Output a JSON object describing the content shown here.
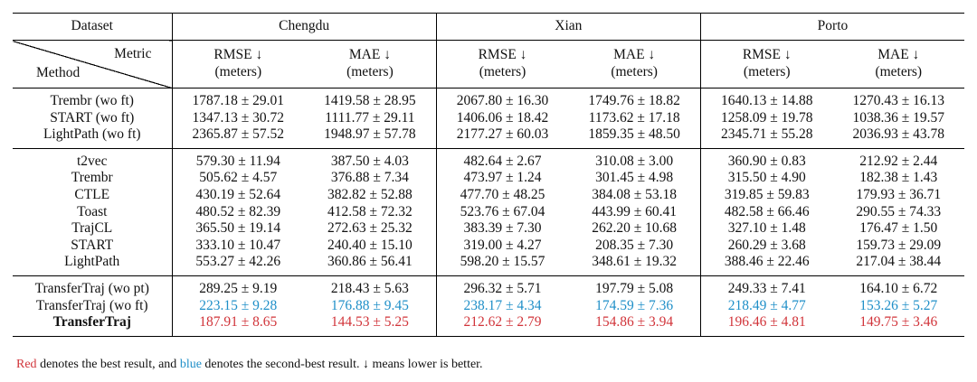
{
  "header": {
    "dataset_label": "Dataset",
    "metric_label": "Metric",
    "method_label": "Method",
    "cities": [
      "Chengdu",
      "Xian",
      "Porto"
    ],
    "metrics": [
      {
        "name": "RMSE ↓",
        "unit": "(meters)"
      },
      {
        "name": "MAE ↓",
        "unit": "(meters)"
      },
      {
        "name": "RMSE ↓",
        "unit": "(meters)"
      },
      {
        "name": "MAE ↓",
        "unit": "(meters)"
      },
      {
        "name": "RMSE ↓",
        "unit": "(meters)"
      },
      {
        "name": "MAE ↓",
        "unit": "(meters)"
      }
    ]
  },
  "groups": [
    {
      "rows": [
        {
          "method": "Trembr (wo ft)",
          "cells": [
            {
              "v": "1787.18 ± 29.01"
            },
            {
              "v": "1419.58 ± 28.95"
            },
            {
              "v": "2067.80 ± 16.30"
            },
            {
              "v": "1749.76 ± 18.82"
            },
            {
              "v": "1640.13 ± 14.88"
            },
            {
              "v": "1270.43 ± 16.13"
            }
          ]
        },
        {
          "method": "START (wo ft)",
          "cells": [
            {
              "v": "1347.13 ± 30.72"
            },
            {
              "v": "1111.77 ± 29.11"
            },
            {
              "v": "1406.06 ± 18.42"
            },
            {
              "v": "1173.62 ± 17.18"
            },
            {
              "v": "1258.09 ± 19.78"
            },
            {
              "v": "1038.36 ± 19.57"
            }
          ]
        },
        {
          "method": "LightPath (wo ft)",
          "cells": [
            {
              "v": "2365.87 ± 57.52"
            },
            {
              "v": "1948.97 ± 57.78"
            },
            {
              "v": "2177.27 ± 60.03"
            },
            {
              "v": "1859.35 ± 48.50"
            },
            {
              "v": "2345.71 ± 55.28"
            },
            {
              "v": "2036.93 ± 43.78"
            }
          ]
        }
      ]
    },
    {
      "rows": [
        {
          "method": "t2vec",
          "cells": [
            {
              "v": "579.30 ± 11.94"
            },
            {
              "v": "387.50 ± 4.03"
            },
            {
              "v": "482.64 ± 2.67"
            },
            {
              "v": "310.08 ± 3.00"
            },
            {
              "v": "360.90 ± 0.83"
            },
            {
              "v": "212.92 ± 2.44"
            }
          ]
        },
        {
          "method": "Trembr",
          "cells": [
            {
              "v": "505.62 ± 4.57"
            },
            {
              "v": "376.88 ± 7.34"
            },
            {
              "v": "473.97 ± 1.24"
            },
            {
              "v": "301.45 ± 4.98"
            },
            {
              "v": "315.50 ± 4.90"
            },
            {
              "v": "182.38 ± 1.43"
            }
          ]
        },
        {
          "method": "CTLE",
          "cells": [
            {
              "v": "430.19 ± 52.64"
            },
            {
              "v": "382.82 ± 52.88"
            },
            {
              "v": "477.70 ± 48.25"
            },
            {
              "v": "384.08 ± 53.18"
            },
            {
              "v": "319.85 ± 59.83"
            },
            {
              "v": "179.93 ± 36.71"
            }
          ]
        },
        {
          "method": "Toast",
          "cells": [
            {
              "v": "480.52 ± 82.39"
            },
            {
              "v": "412.58 ± 72.32"
            },
            {
              "v": "523.76 ± 67.04"
            },
            {
              "v": "443.99 ± 60.41"
            },
            {
              "v": "482.58 ± 66.46"
            },
            {
              "v": "290.55 ± 74.33"
            }
          ]
        },
        {
          "method": "TrajCL",
          "cells": [
            {
              "v": "365.50 ± 19.14"
            },
            {
              "v": "272.63 ± 25.32"
            },
            {
              "v": "383.39 ± 7.30"
            },
            {
              "v": "262.20 ± 10.68"
            },
            {
              "v": "327.10 ± 1.48"
            },
            {
              "v": "176.47 ± 1.50"
            }
          ]
        },
        {
          "method": "START",
          "cells": [
            {
              "v": "333.10 ± 10.47"
            },
            {
              "v": "240.40 ± 15.10"
            },
            {
              "v": "319.00 ± 4.27"
            },
            {
              "v": "208.35 ± 7.30"
            },
            {
              "v": "260.29 ± 3.68"
            },
            {
              "v": "159.73 ± 29.09"
            }
          ]
        },
        {
          "method": "LightPath",
          "cells": [
            {
              "v": "553.27 ± 42.26"
            },
            {
              "v": "360.86 ± 56.41"
            },
            {
              "v": "598.20 ± 15.57"
            },
            {
              "v": "348.61 ± 19.32"
            },
            {
              "v": "388.46 ± 22.46"
            },
            {
              "v": "217.04 ± 38.44"
            }
          ]
        }
      ]
    },
    {
      "rows": [
        {
          "method": "TransferTraj (wo pt)",
          "cells": [
            {
              "v": "289.25 ± 9.19"
            },
            {
              "v": "218.43 ± 5.63"
            },
            {
              "v": "296.32 ± 5.71"
            },
            {
              "v": "197.79 ± 5.08"
            },
            {
              "v": "249.33 ± 7.41"
            },
            {
              "v": "164.10 ± 6.72"
            }
          ]
        },
        {
          "method": "TransferTraj (wo ft)",
          "cells": [
            {
              "v": "223.15 ± 9.28",
              "rank": "second"
            },
            {
              "v": "176.88 ± 9.45",
              "rank": "second"
            },
            {
              "v": "238.17 ± 4.34",
              "rank": "second"
            },
            {
              "v": "174.59 ± 7.36",
              "rank": "second"
            },
            {
              "v": "218.49 ± 4.77",
              "rank": "second"
            },
            {
              "v": "153.26 ± 5.27",
              "rank": "second"
            }
          ]
        },
        {
          "method": "TransferTraj",
          "bold": true,
          "cells": [
            {
              "v": "187.91 ± 8.65",
              "rank": "best"
            },
            {
              "v": "144.53 ± 5.25",
              "rank": "best"
            },
            {
              "v": "212.62 ± 2.79",
              "rank": "best"
            },
            {
              "v": "154.86 ± 3.94",
              "rank": "best"
            },
            {
              "v": "196.46 ± 4.81",
              "rank": "best"
            },
            {
              "v": "149.75 ± 3.46",
              "rank": "best"
            }
          ]
        }
      ]
    }
  ],
  "colors": {
    "best": "#d1343a",
    "second": "#1f8fc8"
  },
  "footnote": {
    "red_word": "Red",
    "part1": " denotes the best result, and ",
    "blue_word": "blue",
    "part2": " denotes the second-best result. ↓ means lower is better."
  }
}
